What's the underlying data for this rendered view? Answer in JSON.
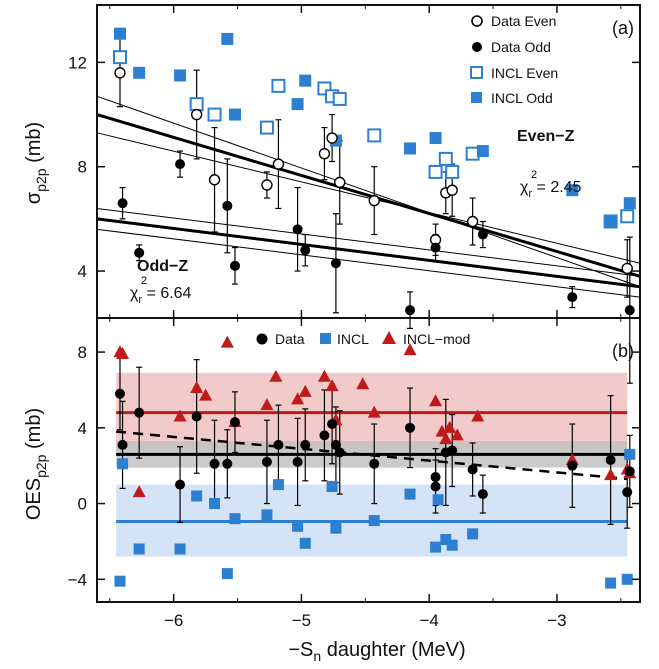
{
  "colors": {
    "data": "#000000",
    "incl": "#2c7fd1",
    "incl_mod": "#c01a1a",
    "band_red": "#f2c4c4",
    "band_blue": "#cfe0f4",
    "band_gray": "#c2c2c2"
  },
  "xaxis": {
    "label_prefix": "−S",
    "label_sub": "n",
    "label_suffix": " daughter (MeV)",
    "ticks": [
      "−6",
      "−5",
      "−4",
      "−3"
    ],
    "range": [
      -6.6,
      -2.35
    ]
  },
  "chart_data": [
    {
      "type": "scatter",
      "panel_tag": "(a)",
      "ylabel": {
        "main": "σ",
        "sub": "p2p",
        "unit": " (mb)"
      },
      "ylim": [
        2.2,
        14.2
      ],
      "yticks": [
        "4",
        "8",
        "12"
      ],
      "legend": {
        "data_even": "Data Even",
        "data_odd": "Data Odd",
        "incl_even": "INCL Even",
        "incl_odd": "INCL Odd"
      },
      "annotations": {
        "even_label": "Even−Z",
        "even_chi": "2.45",
        "odd_label": "Odd−Z",
        "odd_chi": "6.64",
        "chi_symbol": "χ",
        "chi_sub": "r",
        "chi_sup": "2",
        "chi_eq": " = "
      },
      "series": [
        {
          "name": "Data Even",
          "x": [
            -6.42,
            -5.82,
            -5.68,
            -5.27,
            -5.18,
            -4.82,
            -4.76,
            -4.7,
            -4.43,
            -3.95,
            -3.87,
            -3.82,
            -3.66,
            -2.45
          ],
          "y": [
            11.6,
            10.0,
            7.5,
            7.3,
            8.1,
            8.5,
            9.1,
            7.4,
            6.7,
            5.2,
            7.0,
            7.1,
            5.9,
            4.1
          ],
          "err": [
            1.3,
            1.7,
            2.0,
            0.5,
            1.7,
            1.0,
            0.9,
            1.6,
            1.3,
            0.6,
            0.8,
            1.0,
            0.9,
            1.1
          ]
        },
        {
          "name": "Data Odd",
          "x": [
            -6.4,
            -6.27,
            -5.95,
            -5.58,
            -5.52,
            -5.03,
            -4.97,
            -4.73,
            -4.15,
            -3.95,
            -3.58,
            -2.88,
            -2.43
          ],
          "y": [
            6.6,
            4.7,
            8.1,
            6.5,
            4.2,
            5.6,
            4.8,
            4.3,
            2.5,
            4.9,
            5.4,
            3.0,
            2.5
          ],
          "err": [
            0.6,
            0.3,
            0.5,
            1.8,
            0.7,
            1.6,
            0.6,
            1.9,
            0.7,
            0.5,
            0.5,
            0.4,
            2.8
          ]
        },
        {
          "name": "INCL Even",
          "x": [
            -6.42,
            -5.82,
            -5.68,
            -5.27,
            -5.18,
            -4.82,
            -4.76,
            -4.7,
            -4.43,
            -3.95,
            -3.87,
            -3.82,
            -3.66,
            -2.58,
            -2.45
          ],
          "y": [
            12.2,
            10.4,
            10.0,
            9.5,
            11.1,
            11.0,
            10.7,
            10.6,
            9.2,
            7.8,
            8.3,
            7.8,
            8.5,
            5.9,
            6.1
          ]
        },
        {
          "name": "INCL Odd",
          "x": [
            -6.42,
            -6.27,
            -5.95,
            -5.58,
            -5.52,
            -5.03,
            -4.97,
            -4.73,
            -4.15,
            -3.95,
            -3.58,
            -2.88,
            -2.58,
            -2.43
          ],
          "y": [
            13.1,
            11.6,
            11.5,
            12.9,
            10.0,
            10.4,
            11.3,
            9.0,
            8.7,
            9.1,
            8.6,
            7.1,
            5.9,
            6.6
          ]
        }
      ],
      "fits": [
        {
          "name": "Even-Z fit",
          "x": [
            -6.6,
            -2.35
          ],
          "y": [
            10.0,
            3.8
          ],
          "bold": true
        },
        {
          "name": "Even-Z band upper",
          "x": [
            -6.6,
            -2.35
          ],
          "y": [
            10.7,
            3.4
          ],
          "bold": false
        },
        {
          "name": "Even-Z band lower",
          "x": [
            -6.6,
            -2.35
          ],
          "y": [
            9.3,
            4.3
          ],
          "bold": false
        },
        {
          "name": "Odd-Z fit",
          "x": [
            -6.6,
            -2.35
          ],
          "y": [
            6.0,
            3.4
          ],
          "bold": true
        },
        {
          "name": "Odd-Z band upper",
          "x": [
            -6.6,
            -2.35
          ],
          "y": [
            6.4,
            3.8
          ],
          "bold": false
        },
        {
          "name": "Odd-Z band lower",
          "x": [
            -6.6,
            -2.35
          ],
          "y": [
            5.6,
            3.0
          ],
          "bold": false
        }
      ]
    },
    {
      "type": "scatter",
      "panel_tag": "(b)",
      "ylabel": {
        "main": "OES",
        "sub": "p2p",
        "unit": " (mb)"
      },
      "ylim": [
        -5.2,
        9.8
      ],
      "yticks": [
        "−4",
        "0",
        "4",
        "8"
      ],
      "legend": {
        "data": "Data",
        "incl": "INCL",
        "incl_mod": "INCL−mod"
      },
      "series": [
        {
          "name": "Data",
          "x": [
            -6.42,
            -6.4,
            -6.27,
            -5.95,
            -5.82,
            -5.68,
            -5.58,
            -5.52,
            -5.27,
            -5.18,
            -5.03,
            -4.97,
            -4.82,
            -4.76,
            -4.73,
            -4.7,
            -4.43,
            -4.15,
            -3.95,
            -3.95,
            -3.87,
            -3.82,
            -3.66,
            -3.58,
            -2.88,
            -2.58,
            -2.45,
            -2.43
          ],
          "y": [
            5.8,
            3.1,
            4.8,
            1.0,
            4.6,
            2.1,
            2.1,
            4.3,
            2.2,
            3.1,
            2.2,
            3.1,
            3.6,
            4.2,
            3.1,
            2.7,
            2.1,
            4.0,
            1.4,
            0.9,
            2.7,
            2.8,
            1.8,
            0.5,
            2.0,
            2.3,
            0.6,
            1.7
          ],
          "err": [
            1.9,
            2.3,
            2.4,
            2.0,
            3.0,
            2.3,
            1.8,
            1.6,
            2.2,
            2.1,
            2.3,
            1.9,
            2.4,
            2.1,
            2.0,
            2.2,
            2.1,
            2.1,
            1.5,
            1.4,
            2.8,
            1.9,
            1.4,
            1.0,
            2.2,
            3.4,
            1.9,
            1.9
          ]
        },
        {
          "name": "INCL",
          "x": [
            -6.42,
            -6.4,
            -6.27,
            -5.95,
            -5.82,
            -5.68,
            -5.58,
            -5.52,
            -5.27,
            -5.18,
            -5.03,
            -4.97,
            -4.76,
            -4.73,
            -4.43,
            -4.15,
            -3.95,
            -3.93,
            -3.87,
            -3.82,
            -3.66,
            -2.58,
            -2.45,
            -2.43
          ],
          "y": [
            -4.1,
            2.1,
            -2.4,
            -2.4,
            0.4,
            0.0,
            -3.7,
            -0.8,
            -0.6,
            1.0,
            -1.2,
            -2.1,
            0.9,
            -1.3,
            -0.9,
            0.5,
            -2.3,
            0.2,
            -1.9,
            -2.2,
            -1.6,
            -4.2,
            -4.0,
            2.6
          ]
        },
        {
          "name": "INCL−mod",
          "x": [
            -6.42,
            -6.4,
            -6.27,
            -5.95,
            -5.82,
            -5.75,
            -5.58,
            -5.52,
            -5.27,
            -5.2,
            -5.03,
            -4.97,
            -4.82,
            -4.76,
            -4.73,
            -4.52,
            -4.43,
            -4.15,
            -3.95,
            -3.9,
            -3.87,
            -3.84,
            -3.78,
            -3.62,
            -2.88,
            -2.58,
            -2.45,
            -2.43
          ],
          "y": [
            8.0,
            7.9,
            0.6,
            4.6,
            6.1,
            5.7,
            8.5,
            4.3,
            5.2,
            6.7,
            5.5,
            5.9,
            6.7,
            6.2,
            4.4,
            6.3,
            4.8,
            8.1,
            5.4,
            3.8,
            3.4,
            4.0,
            3.6,
            4.6,
            2.3,
            1.5,
            1.8,
            1.6
          ]
        }
      ],
      "bands": [
        {
          "name": "INCL−mod mean",
          "center": 4.8,
          "low": 2.8,
          "high": 6.9
        },
        {
          "name": "Data mean",
          "center": 2.6,
          "low": 1.9,
          "high": 3.3
        },
        {
          "name": "INCL mean",
          "center": -0.95,
          "low": -2.8,
          "high": 1.0
        }
      ],
      "trend": {
        "name": "Data trend",
        "x": [
          -6.45,
          -2.45
        ],
        "y": [
          3.8,
          1.3
        ]
      }
    }
  ]
}
